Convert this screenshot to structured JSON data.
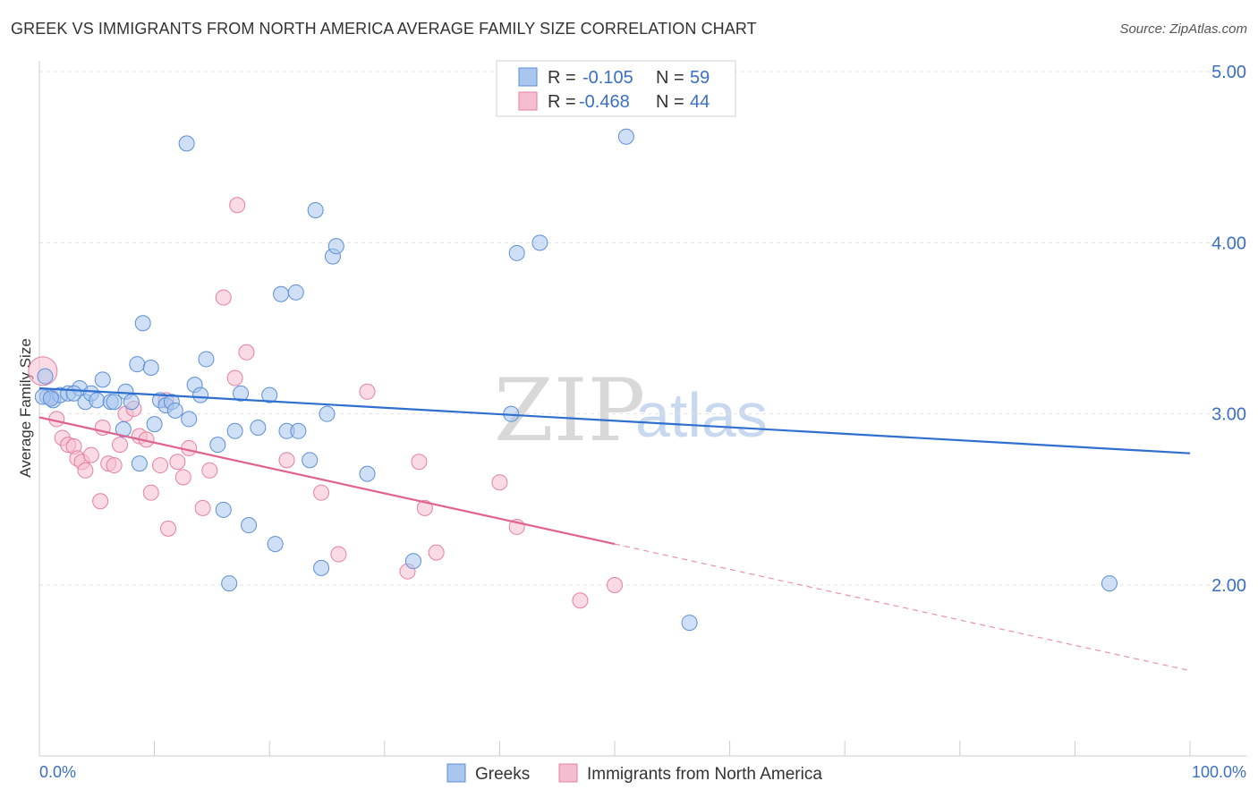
{
  "title": "GREEK VS IMMIGRANTS FROM NORTH AMERICA AVERAGE FAMILY SIZE CORRELATION CHART",
  "source": "Source: ZipAtlas.com",
  "watermark": {
    "zip": "ZIP",
    "atlas": "atlas"
  },
  "colors": {
    "blue": "#5b8fd6",
    "blue_fill": "#a8c6ee",
    "blue_line": "#2f6fd0",
    "pink": "#e87fa0",
    "pink_fill": "#f5bdd0",
    "pink_line": "#e0628d",
    "tick": "#3b6fc4"
  },
  "legend": {
    "r_label": "R =",
    "n_label": "N =",
    "series": [
      {
        "r": "-0.105",
        "n": "59"
      },
      {
        "r": "-0.468",
        "n": "44"
      }
    ]
  },
  "chart_data": {
    "type": "scatter",
    "title": "GREEK VS IMMIGRANTS FROM NORTH AMERICA AVERAGE FAMILY SIZE CORRELATION CHART",
    "xlabel": "",
    "ylabel": "Average Family Size",
    "xlim": [
      0,
      100
    ],
    "ylim": [
      1.0,
      5.15
    ],
    "x_tick_labels": [
      "0.0%",
      "100.0%"
    ],
    "y_ticks": [
      2.0,
      3.0,
      4.0,
      5.0
    ],
    "y_tick_labels": [
      "2.00",
      "3.00",
      "4.00",
      "5.00"
    ],
    "grid": true,
    "legend_position": "top-center",
    "series": [
      {
        "name": "Greeks",
        "r": -0.105,
        "n": 59,
        "trend": {
          "x0": 0,
          "y0": 3.15,
          "x1": 100,
          "y1": 2.77
        },
        "points": [
          [
            0.5,
            3.22
          ],
          [
            0.7,
            3.1
          ],
          [
            1.2,
            3.08
          ],
          [
            1.8,
            3.11
          ],
          [
            2.5,
            3.12
          ],
          [
            3.5,
            3.15
          ],
          [
            4.0,
            3.07
          ],
          [
            4.5,
            3.12
          ],
          [
            5.0,
            3.08
          ],
          [
            5.5,
            3.2
          ],
          [
            6.2,
            3.07
          ],
          [
            6.5,
            3.07
          ],
          [
            7.3,
            2.91
          ],
          [
            7.5,
            3.13
          ],
          [
            8.0,
            3.07
          ],
          [
            8.5,
            3.29
          ],
          [
            8.7,
            2.71
          ],
          [
            9.0,
            3.53
          ],
          [
            9.7,
            3.27
          ],
          [
            10.0,
            2.94
          ],
          [
            10.5,
            3.08
          ],
          [
            11.0,
            3.05
          ],
          [
            11.5,
            3.07
          ],
          [
            11.8,
            3.02
          ],
          [
            12.8,
            4.58
          ],
          [
            13.0,
            2.97
          ],
          [
            13.5,
            3.17
          ],
          [
            14.0,
            3.11
          ],
          [
            14.5,
            3.32
          ],
          [
            15.5,
            2.82
          ],
          [
            16.0,
            2.44
          ],
          [
            16.5,
            2.01
          ],
          [
            17.0,
            2.9
          ],
          [
            17.5,
            3.12
          ],
          [
            18.2,
            2.35
          ],
          [
            19.0,
            2.92
          ],
          [
            20.0,
            3.11
          ],
          [
            20.5,
            2.24
          ],
          [
            21.0,
            3.7
          ],
          [
            21.5,
            2.9
          ],
          [
            22.3,
            3.71
          ],
          [
            22.5,
            2.9
          ],
          [
            23.5,
            2.73
          ],
          [
            24.0,
            4.19
          ],
          [
            24.5,
            2.1
          ],
          [
            25.0,
            3.0
          ],
          [
            25.5,
            3.92
          ],
          [
            25.8,
            3.98
          ],
          [
            28.5,
            2.65
          ],
          [
            32.5,
            2.14
          ],
          [
            41.0,
            3.0
          ],
          [
            41.5,
            3.94
          ],
          [
            43.5,
            4.0
          ],
          [
            51.0,
            4.62
          ],
          [
            56.5,
            1.78
          ],
          [
            93.0,
            2.01
          ],
          [
            0.3,
            3.1
          ],
          [
            1.0,
            3.09
          ],
          [
            3.0,
            3.12
          ]
        ]
      },
      {
        "name": "Immigrants from North America",
        "r": -0.468,
        "n": 44,
        "trend": {
          "x0": 0,
          "y0": 2.98,
          "x1": 50,
          "y1": 2.24,
          "dash_x1": 100,
          "dash_y1": 1.5
        },
        "points": [
          [
            0.3,
            3.25
          ],
          [
            1.0,
            3.1
          ],
          [
            1.5,
            2.97
          ],
          [
            2.0,
            2.86
          ],
          [
            2.5,
            2.82
          ],
          [
            3.0,
            2.81
          ],
          [
            3.3,
            2.74
          ],
          [
            3.7,
            2.72
          ],
          [
            4.0,
            2.67
          ],
          [
            4.5,
            2.76
          ],
          [
            5.3,
            2.49
          ],
          [
            5.5,
            2.92
          ],
          [
            6.0,
            2.71
          ],
          [
            6.5,
            2.7
          ],
          [
            7.0,
            2.82
          ],
          [
            7.5,
            3.0
          ],
          [
            8.2,
            3.03
          ],
          [
            8.7,
            2.87
          ],
          [
            9.3,
            2.85
          ],
          [
            9.7,
            2.54
          ],
          [
            10.5,
            2.7
          ],
          [
            11.0,
            3.08
          ],
          [
            11.2,
            2.33
          ],
          [
            12.0,
            2.72
          ],
          [
            12.5,
            2.63
          ],
          [
            13.0,
            2.8
          ],
          [
            14.2,
            2.45
          ],
          [
            14.8,
            2.67
          ],
          [
            16.0,
            3.68
          ],
          [
            17.0,
            3.21
          ],
          [
            17.2,
            4.22
          ],
          [
            18.0,
            3.36
          ],
          [
            21.5,
            2.73
          ],
          [
            24.5,
            2.54
          ],
          [
            26.0,
            2.18
          ],
          [
            28.5,
            3.13
          ],
          [
            32.0,
            2.08
          ],
          [
            33.0,
            2.72
          ],
          [
            33.5,
            2.45
          ],
          [
            34.5,
            2.19
          ],
          [
            40.0,
            2.6
          ],
          [
            41.5,
            2.34
          ],
          [
            47.0,
            1.91
          ],
          [
            50.0,
            2.0
          ]
        ]
      }
    ]
  },
  "bottom_legend": [
    "Greeks",
    "Immigrants from North America"
  ]
}
